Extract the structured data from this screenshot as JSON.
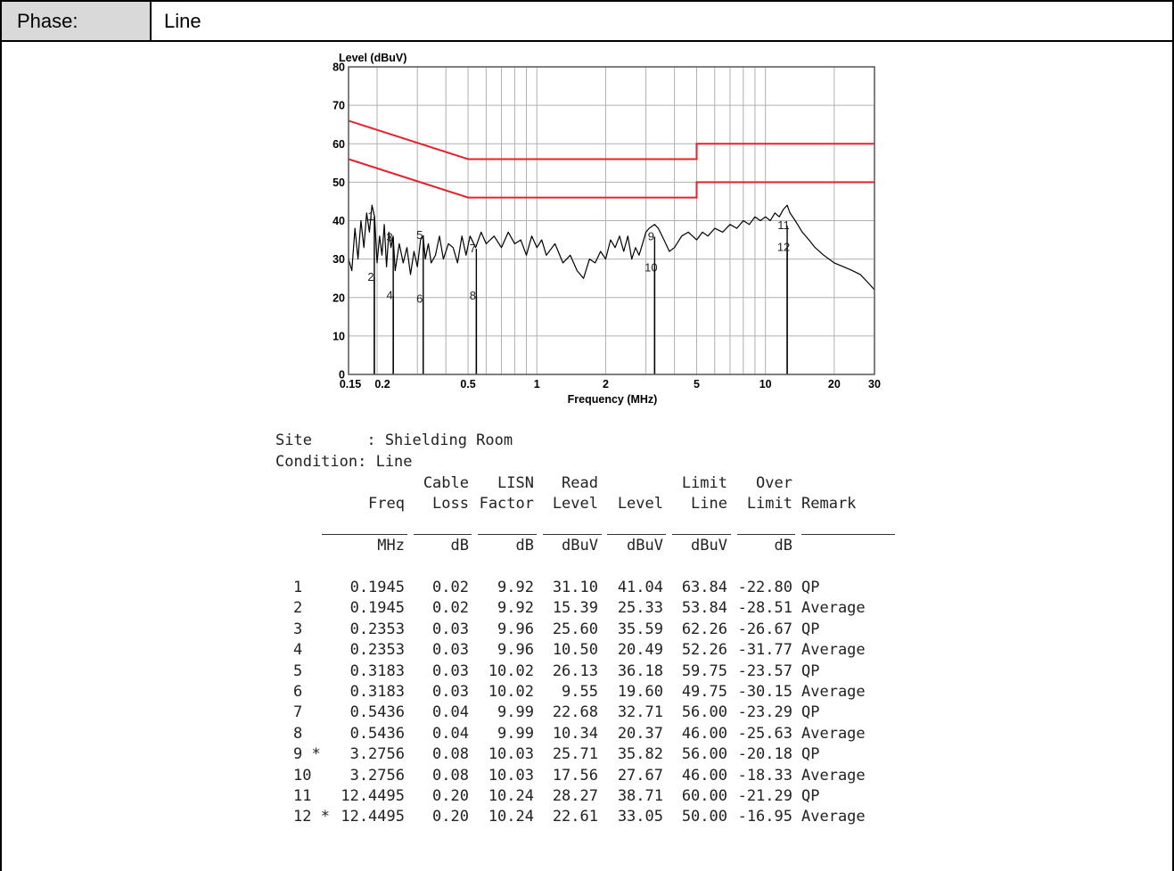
{
  "header": {
    "phase_label": "Phase:",
    "phase_value": "Line"
  },
  "chart_data": {
    "type": "line",
    "ylabel": "Level (dBuV)",
    "xlabel": "Frequency (MHz)",
    "xscale": "log",
    "xlim": [
      0.15,
      30
    ],
    "ylim": [
      0,
      80
    ],
    "x_ticks": [
      0.15,
      0.2,
      0.5,
      1,
      2,
      5,
      10,
      20,
      30
    ],
    "x_tick_labels": [
      "0.15",
      "0.2",
      "0.5",
      "1",
      "2",
      "5",
      "10",
      "20",
      "30"
    ],
    "y_ticks": [
      0,
      10,
      20,
      30,
      40,
      50,
      60,
      70,
      80
    ],
    "y_tick_labels": [
      "0",
      "10",
      "20",
      "30",
      "40",
      "50",
      "60",
      "70",
      "80"
    ],
    "grid": true,
    "colors": {
      "limit": "#e8212b",
      "trace": "#000000",
      "grid": "#b0b0b0"
    },
    "limit_lines": [
      {
        "points": [
          [
            0.15,
            66
          ],
          [
            0.5,
            56
          ],
          [
            5,
            56
          ],
          [
            5,
            60
          ],
          [
            30,
            60
          ]
        ]
      },
      {
        "points": [
          [
            0.15,
            56
          ],
          [
            0.5,
            46
          ],
          [
            5,
            46
          ],
          [
            5,
            50
          ],
          [
            30,
            50
          ]
        ]
      }
    ],
    "trace_points": [
      [
        0.15,
        30
      ],
      [
        0.155,
        27
      ],
      [
        0.16,
        38
      ],
      [
        0.165,
        30
      ],
      [
        0.17,
        40
      ],
      [
        0.175,
        33
      ],
      [
        0.18,
        42
      ],
      [
        0.185,
        37
      ],
      [
        0.19,
        44
      ],
      [
        0.195,
        41
      ],
      [
        0.2,
        29
      ],
      [
        0.205,
        36
      ],
      [
        0.21,
        31
      ],
      [
        0.215,
        39
      ],
      [
        0.22,
        28
      ],
      [
        0.225,
        37
      ],
      [
        0.23,
        33
      ],
      [
        0.235,
        36
      ],
      [
        0.24,
        27
      ],
      [
        0.25,
        34
      ],
      [
        0.26,
        29
      ],
      [
        0.27,
        33
      ],
      [
        0.28,
        26
      ],
      [
        0.29,
        32
      ],
      [
        0.3,
        28
      ],
      [
        0.31,
        35
      ],
      [
        0.318,
        36
      ],
      [
        0.325,
        30
      ],
      [
        0.335,
        34
      ],
      [
        0.345,
        29
      ],
      [
        0.36,
        31
      ],
      [
        0.375,
        36
      ],
      [
        0.39,
        30
      ],
      [
        0.41,
        34
      ],
      [
        0.43,
        33
      ],
      [
        0.45,
        29
      ],
      [
        0.47,
        36
      ],
      [
        0.49,
        31
      ],
      [
        0.51,
        36
      ],
      [
        0.54,
        33
      ],
      [
        0.57,
        37
      ],
      [
        0.6,
        34
      ],
      [
        0.65,
        36
      ],
      [
        0.7,
        33
      ],
      [
        0.75,
        37
      ],
      [
        0.8,
        34
      ],
      [
        0.85,
        35
      ],
      [
        0.9,
        31
      ],
      [
        0.95,
        36
      ],
      [
        1.0,
        33
      ],
      [
        1.05,
        35
      ],
      [
        1.1,
        31
      ],
      [
        1.2,
        34
      ],
      [
        1.3,
        29
      ],
      [
        1.4,
        31
      ],
      [
        1.5,
        27
      ],
      [
        1.6,
        25
      ],
      [
        1.7,
        30
      ],
      [
        1.8,
        29
      ],
      [
        1.9,
        32
      ],
      [
        2.0,
        30
      ],
      [
        2.1,
        35
      ],
      [
        2.2,
        33
      ],
      [
        2.3,
        36
      ],
      [
        2.4,
        32
      ],
      [
        2.5,
        36
      ],
      [
        2.6,
        30
      ],
      [
        2.7,
        33
      ],
      [
        2.8,
        31
      ],
      [
        2.9,
        34
      ],
      [
        3.0,
        37
      ],
      [
        3.1,
        38
      ],
      [
        3.2756,
        39
      ],
      [
        3.4,
        38
      ],
      [
        3.6,
        35
      ],
      [
        3.8,
        32
      ],
      [
        4.0,
        33
      ],
      [
        4.3,
        36
      ],
      [
        4.6,
        37
      ],
      [
        5.0,
        35
      ],
      [
        5.3,
        37
      ],
      [
        5.6,
        36
      ],
      [
        6.0,
        38
      ],
      [
        6.5,
        37
      ],
      [
        7.0,
        39
      ],
      [
        7.5,
        38
      ],
      [
        8.0,
        40
      ],
      [
        8.5,
        39
      ],
      [
        9.0,
        41
      ],
      [
        9.5,
        40
      ],
      [
        10.0,
        41
      ],
      [
        10.5,
        40
      ],
      [
        11.0,
        42
      ],
      [
        11.5,
        41
      ],
      [
        12.0,
        43
      ],
      [
        12.4495,
        44
      ],
      [
        12.8,
        42
      ],
      [
        13.5,
        40
      ],
      [
        14.5,
        37
      ],
      [
        15.5,
        35
      ],
      [
        16.5,
        33
      ],
      [
        18.0,
        31
      ],
      [
        20.0,
        29
      ],
      [
        22.0,
        28
      ],
      [
        24.0,
        27
      ],
      [
        26.0,
        26
      ],
      [
        28.0,
        24
      ],
      [
        30.0,
        22
      ]
    ],
    "markers": [
      {
        "label": "1",
        "x": 0.1945,
        "y": 41.04
      },
      {
        "label": "2",
        "x": 0.1945,
        "y": 25.33
      },
      {
        "label": "3",
        "x": 0.2353,
        "y": 35.59
      },
      {
        "label": "4",
        "x": 0.2353,
        "y": 20.49
      },
      {
        "label": "5",
        "x": 0.3183,
        "y": 36.18
      },
      {
        "label": "6",
        "x": 0.3183,
        "y": 19.6
      },
      {
        "label": "7",
        "x": 0.5436,
        "y": 32.71
      },
      {
        "label": "8",
        "x": 0.5436,
        "y": 20.37
      },
      {
        "label": "9",
        "x": 3.2756,
        "y": 35.82
      },
      {
        "label": "10",
        "x": 3.2756,
        "y": 27.67
      },
      {
        "label": "11",
        "x": 12.4495,
        "y": 38.71
      },
      {
        "label": "12",
        "x": 12.4495,
        "y": 33.05
      }
    ]
  },
  "site_info": {
    "site_line": "Site      : Shielding Room",
    "condition_line": "Condition: Line"
  },
  "table": {
    "header_line1": [
      "",
      "",
      "Cable",
      "LISN",
      "Read",
      "",
      "Limit",
      "Over",
      ""
    ],
    "header_line2": [
      "",
      "Freq",
      "Loss",
      "Factor",
      "Level",
      "Level",
      "Line",
      "Limit",
      "Remark"
    ],
    "units": [
      "",
      "MHz",
      "dB",
      "dB",
      "dBuV",
      "dBuV",
      "dBuV",
      "dB",
      ""
    ],
    "rows": [
      [
        "1",
        "0.1945",
        "0.02",
        "9.92",
        "31.10",
        "41.04",
        "63.84",
        "-22.80",
        "QP"
      ],
      [
        "2",
        "0.1945",
        "0.02",
        "9.92",
        "15.39",
        "25.33",
        "53.84",
        "-28.51",
        "Average"
      ],
      [
        "3",
        "0.2353",
        "0.03",
        "9.96",
        "25.60",
        "35.59",
        "62.26",
        "-26.67",
        "QP"
      ],
      [
        "4",
        "0.2353",
        "0.03",
        "9.96",
        "10.50",
        "20.49",
        "52.26",
        "-31.77",
        "Average"
      ],
      [
        "5",
        "0.3183",
        "0.03",
        "10.02",
        "26.13",
        "36.18",
        "59.75",
        "-23.57",
        "QP"
      ],
      [
        "6",
        "0.3183",
        "0.03",
        "10.02",
        "9.55",
        "19.60",
        "49.75",
        "-30.15",
        "Average"
      ],
      [
        "7",
        "0.5436",
        "0.04",
        "9.99",
        "22.68",
        "32.71",
        "56.00",
        "-23.29",
        "QP"
      ],
      [
        "8",
        "0.5436",
        "0.04",
        "9.99",
        "10.34",
        "20.37",
        "46.00",
        "-25.63",
        "Average"
      ],
      [
        "9 *",
        "3.2756",
        "0.08",
        "10.03",
        "25.71",
        "35.82",
        "56.00",
        "-20.18",
        "QP"
      ],
      [
        "10",
        "3.2756",
        "0.08",
        "10.03",
        "17.56",
        "27.67",
        "46.00",
        "-18.33",
        "Average"
      ],
      [
        "11",
        "12.4495",
        "0.20",
        "10.24",
        "28.27",
        "38.71",
        "60.00",
        "-21.29",
        "QP"
      ],
      [
        "12 *",
        "12.4495",
        "0.20",
        "10.24",
        "22.61",
        "33.05",
        "50.00",
        "-16.95",
        "Average"
      ]
    ]
  }
}
